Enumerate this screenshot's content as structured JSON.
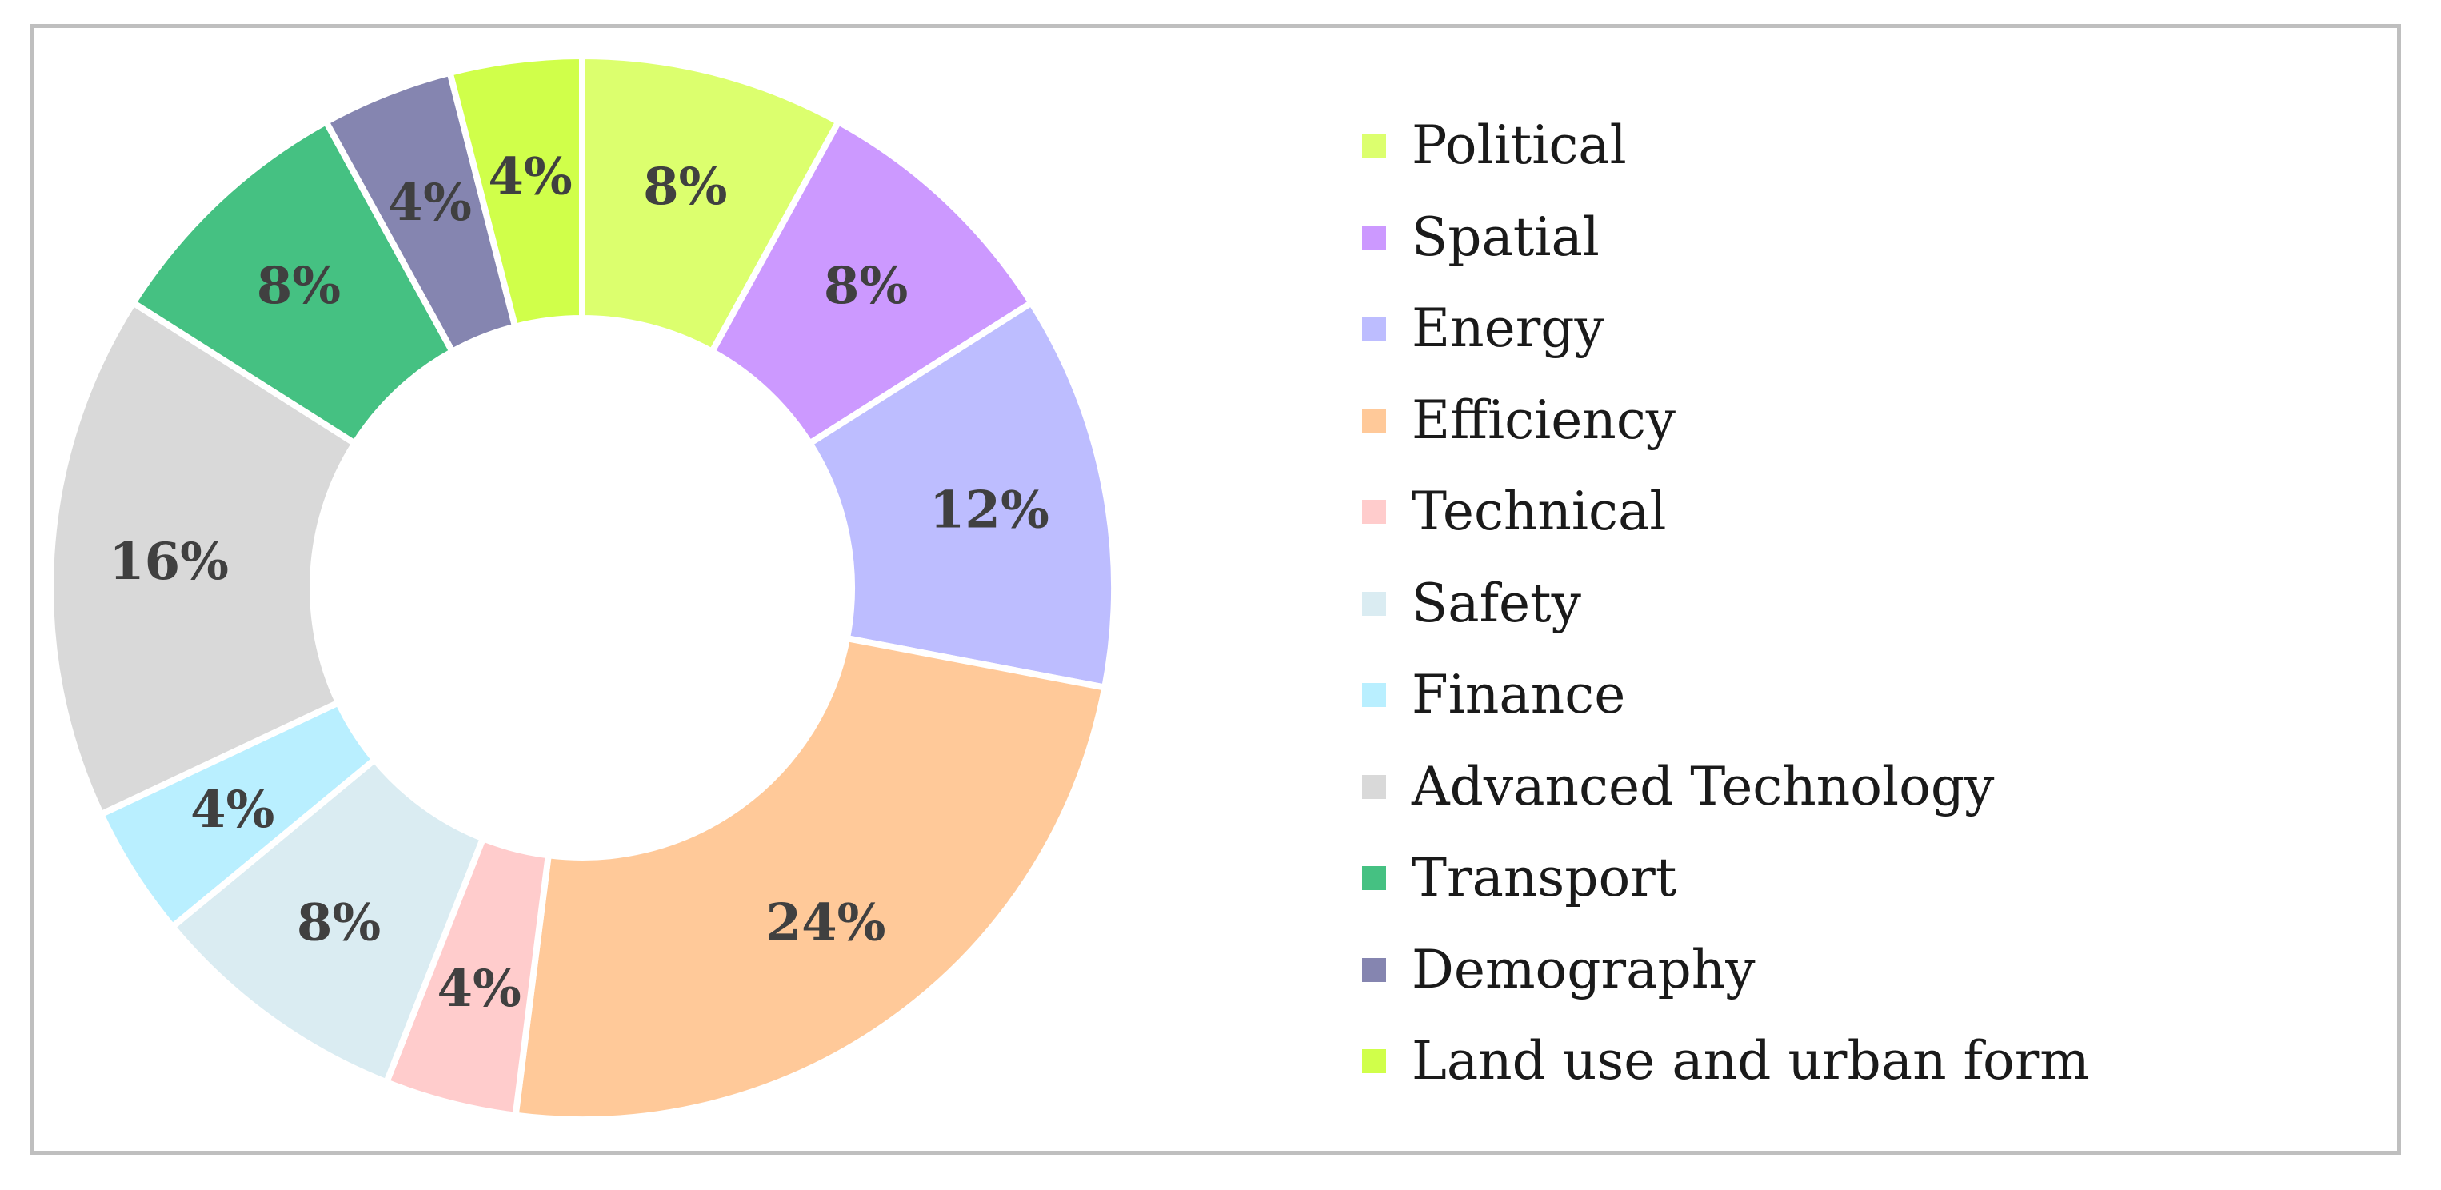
{
  "chart_data": {
    "type": "pie",
    "variant": "donut",
    "title": "",
    "slices": [
      {
        "name": "Political",
        "value": 8,
        "label": "8%",
        "color": "#dcff6e"
      },
      {
        "name": "Spatial",
        "value": 8,
        "label": "8%",
        "color": "#cc99ff"
      },
      {
        "name": "Energy",
        "value": 12,
        "label": "12%",
        "color": "#bdbdff"
      },
      {
        "name": "Efficiency",
        "value": 24,
        "label": "24%",
        "color": "#ffc999"
      },
      {
        "name": "Technical",
        "value": 4,
        "label": "4%",
        "color": "#ffcccc"
      },
      {
        "name": "Safety",
        "value": 8,
        "label": "8%",
        "color": "#daecf2"
      },
      {
        "name": "Finance",
        "value": 4,
        "label": "4%",
        "color": "#b9efff"
      },
      {
        "name": "Advanced Technology",
        "value": 16,
        "label": "16%",
        "color": "#d9d9d9"
      },
      {
        "name": "Transport",
        "value": 8,
        "label": "8%",
        "color": "#45c182"
      },
      {
        "name": "Demography",
        "value": 4,
        "label": "4%",
        "color": "#8585b0"
      },
      {
        "name": "Land use and urban form",
        "value": 4,
        "label": "4%",
        "color": "#d0ff4a"
      }
    ],
    "legend_position": "right"
  }
}
